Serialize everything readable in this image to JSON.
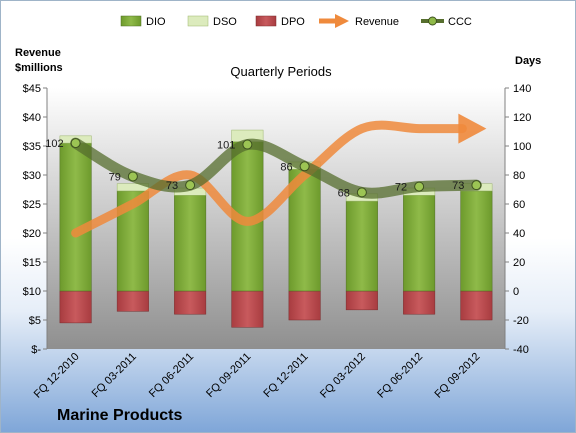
{
  "chart_data": {
    "type": "bar",
    "title": "Quarterly Periods",
    "company": "Marine Products",
    "left_axis_label_line1": "Revenue",
    "left_axis_label_line2": "$millions",
    "right_axis_label": "Days",
    "categories": [
      "FQ 12-2010",
      "FQ 03-2011",
      "FQ 06-2011",
      "FQ 09-2011",
      "FQ 12-2011",
      "FQ 03-2012",
      "FQ 06-2012",
      "FQ 09-2012"
    ],
    "left_axis": {
      "min": 0,
      "max": 45,
      "step": 5,
      "tick_labels": [
        "$-",
        "$5",
        "$10",
        "$15",
        "$20",
        "$25",
        "$30",
        "$35",
        "$40",
        "$45"
      ]
    },
    "right_axis": {
      "min": -40,
      "max": 140,
      "step": 20,
      "tick_labels": [
        "-40",
        "-20",
        "0",
        "20",
        "40",
        "60",
        "80",
        "100",
        "120",
        "140"
      ]
    },
    "series": [
      {
        "name": "DIO",
        "axis": "days",
        "values": [
          102,
          69,
          66,
          103,
          84,
          62,
          66,
          69
        ],
        "color": "#7ea83a"
      },
      {
        "name": "DSO",
        "axis": "days",
        "values": [
          5,
          5,
          5,
          8,
          5,
          5,
          5,
          5
        ],
        "color": "#d9e8b6"
      },
      {
        "name": "DPO",
        "axis": "days",
        "values": [
          -22,
          -14,
          -16,
          -25,
          -20,
          -13,
          -16,
          -20
        ],
        "color": "#b9474a"
      },
      {
        "name": "Revenue",
        "axis": "revenue",
        "values": [
          20,
          25,
          30,
          22,
          30,
          38,
          38,
          38
        ],
        "color": "#ef8a3c"
      },
      {
        "name": "CCC",
        "axis": "days",
        "values": [
          102,
          79,
          73,
          101,
          86,
          68,
          72,
          73
        ],
        "color": "#566e2e"
      }
    ],
    "ccc_data_labels": [
      "102",
      "79",
      "73",
      "101",
      "86",
      "68",
      "72",
      "73"
    ],
    "legend_position": "top",
    "grid": false
  }
}
